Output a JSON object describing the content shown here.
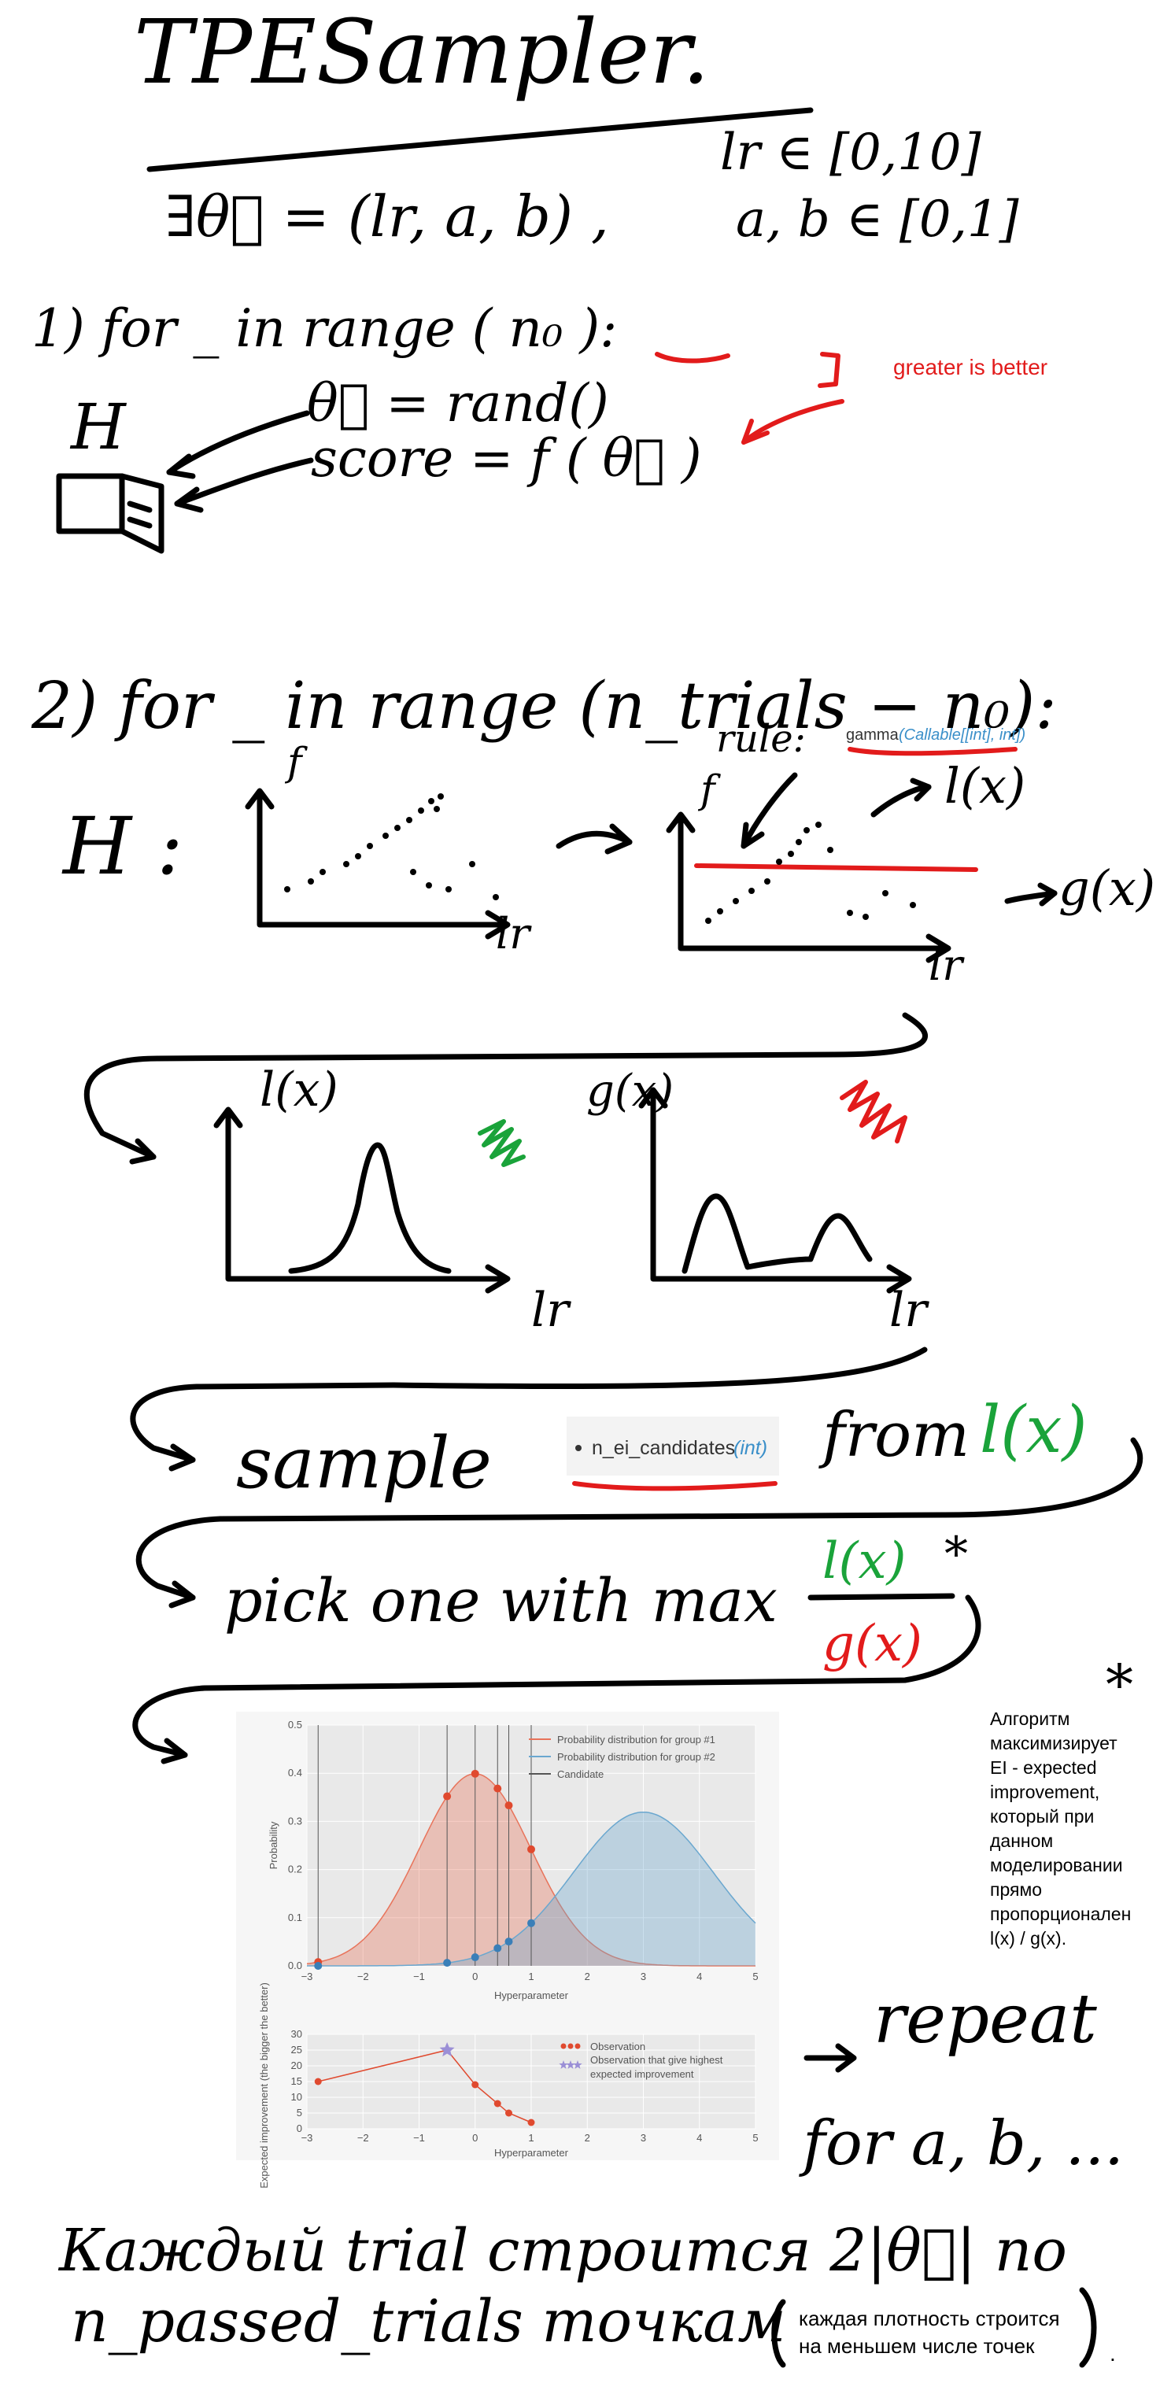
{
  "title": "TPESampler.",
  "theta_def": "∃θ⃗ = (lr, a, b) ,",
  "lr_range": "lr ∈ [0,10]",
  "ab_range": "a, b ∈ [0,1]",
  "step1": {
    "header": "1)   for _ in range ( n₀ ):",
    "n0": "n₀",
    "line1": "θ⃗ = rand()",
    "line2": "score = f ( θ⃗ )",
    "store_label": "H",
    "note": "greater is better"
  },
  "step2": {
    "header": "2) for _ in range (n_trials − n₀):",
    "rule_label": "rule:",
    "gamma_name": "gamma",
    "gamma_type": "(Callable[[int], int])",
    "H_label": "H :",
    "f_label": "f",
    "lr_label": "lr",
    "lx_label": "l(x)",
    "gx_label": "g(x)"
  },
  "densities": {
    "lx_label": "l(x)",
    "gx_label": "g(x)",
    "lr_label": "lr"
  },
  "sample": {
    "word": "sample",
    "chip": "n_ei_candidates",
    "chip_type": "(int)",
    "from": "from",
    "lx": "l(x)"
  },
  "pick": {
    "text": "pick one with max",
    "num": "l(x)",
    "den": "g(x)",
    "star": "*"
  },
  "note_ru": {
    "star": "*",
    "lines": [
      "Алгоритм",
      "максимизирует",
      "EI - expected",
      "improvement,",
      "который при",
      "данном",
      "моделировании",
      "прямо",
      "пропорционален",
      "l(x) / g(x)."
    ]
  },
  "chart_data": [
    {
      "type": "area",
      "xlabel": "Hyperparameter",
      "ylabel": "Probability",
      "xlim": [
        -3,
        5
      ],
      "ylim": [
        0.0,
        0.5
      ],
      "xticks": [
        "−3",
        "−2",
        "−1",
        "0",
        "1",
        "2",
        "3",
        "4",
        "5"
      ],
      "yticks": [
        "0.0",
        "0.1",
        "0.2",
        "0.3",
        "0.4",
        "0.5"
      ],
      "legend": [
        "Probability distribution for group #1",
        "Probability distribution for group #2",
        "Candidate"
      ],
      "legend_position": "top-right",
      "series": [
        {
          "name": "Probability distribution for group #1",
          "color": "#e8735a",
          "mean": 0.0,
          "sd": 1.0
        },
        {
          "name": "Probability distribution for group #2",
          "color": "#6aa7cf",
          "mean": 3.0,
          "sd": 1.25
        }
      ],
      "candidates": [
        -2.8,
        -0.5,
        0.0,
        0.4,
        0.6,
        1.0
      ]
    },
    {
      "type": "scatter",
      "xlabel": "Hyperparameter",
      "ylabel": "Expected improvement (the bigger the better)",
      "xlim": [
        -3,
        5
      ],
      "ylim": [
        0,
        30
      ],
      "xticks": [
        "−3",
        "−2",
        "−1",
        "0",
        "1",
        "2",
        "3",
        "4",
        "5"
      ],
      "yticks": [
        "0",
        "5",
        "10",
        "15",
        "20",
        "25",
        "30"
      ],
      "legend": [
        "Observation",
        "Observation that give highest expected improvement"
      ],
      "legend_position": "top-right",
      "points": [
        {
          "x": -2.8,
          "y": 15
        },
        {
          "x": -0.5,
          "y": 25
        },
        {
          "x": 0.0,
          "y": 14
        },
        {
          "x": 0.4,
          "y": 8
        },
        {
          "x": 0.6,
          "y": 5
        },
        {
          "x": 1.0,
          "y": 2
        }
      ],
      "best_x": -0.5
    }
  ],
  "repeat": {
    "word": "repeat",
    "for": "for a, b, ..."
  },
  "bottom": {
    "line1": "Каждый trial строится 2|θ⃗| по",
    "line2": "n_passed_trials точкам",
    "paren_text_1": "каждая плотность строится",
    "paren_text_2": "на меньшем числе точек",
    "dot": "."
  }
}
